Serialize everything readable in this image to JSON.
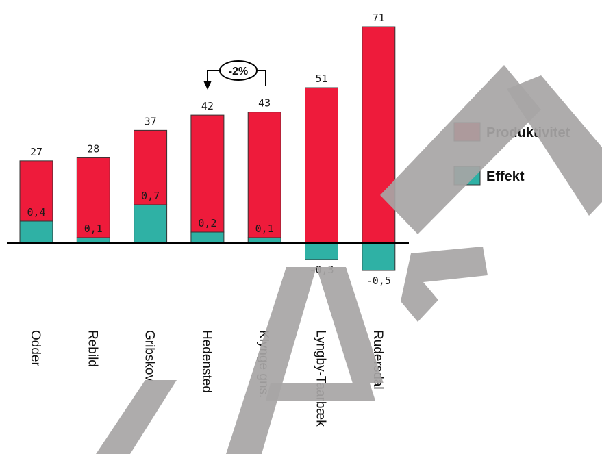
{
  "chart_data": {
    "type": "bar",
    "stacked": true,
    "categories": [
      "Odder",
      "Rebild",
      "Gribskov",
      "Hedensted",
      "Klynge gns.",
      "Lyngby-Taarbæk",
      "Rudersdal"
    ],
    "series": [
      {
        "name": "Produktivitet",
        "color": "#ee1b3b",
        "total_labels": [
          "27",
          "28",
          "37",
          "42",
          "43",
          "51",
          "71"
        ]
      },
      {
        "name": "Effekt",
        "color": "#2fb1a5",
        "values": [
          0.4,
          0.1,
          0.7,
          0.2,
          0.1,
          -0.3,
          -0.5
        ],
        "labels": [
          "0,4",
          "0,1",
          "0,7",
          "0,2",
          "0,1",
          "-0,3",
          "-0,5"
        ]
      }
    ],
    "totals": [
      27,
      28,
      37,
      42,
      43,
      51,
      71
    ],
    "annotation": {
      "text": "-2%",
      "from": "Klynge gns.",
      "to": "Hedensted"
    },
    "legend": {
      "position": "right"
    },
    "grid": false
  },
  "watermark": "KLADDE"
}
